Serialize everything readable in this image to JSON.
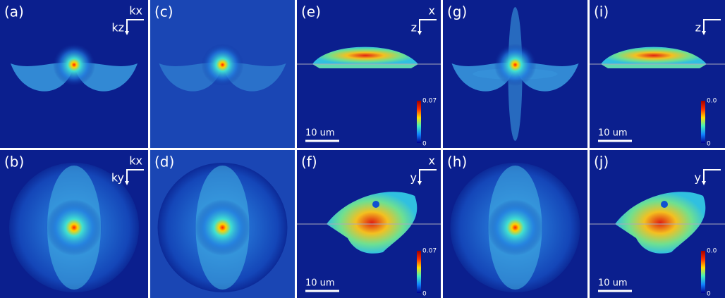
{
  "panels": [
    {
      "label": "(a)",
      "axis_h": "kx",
      "axis_v": "kz"
    },
    {
      "label": "(b)",
      "axis_h": "kx",
      "axis_v": "ky"
    },
    {
      "label": "(c)"
    },
    {
      "label": "(d)"
    },
    {
      "label": "(e)",
      "axis_h": "x",
      "axis_v": "z",
      "scale_bar": "10 um",
      "colorbar_max": "0.07",
      "colorbar_min": "0"
    },
    {
      "label": "(f)",
      "axis_h": "x",
      "axis_v": "y",
      "scale_bar": "10 um",
      "colorbar_max": "0.07",
      "colorbar_min": "0"
    },
    {
      "label": "(g)"
    },
    {
      "label": "(h)"
    },
    {
      "label": "(i)",
      "axis_v": "z",
      "scale_bar": "10 um",
      "colorbar_max": "0.0",
      "colorbar_min": "0"
    },
    {
      "label": "(j)",
      "axis_v": "y",
      "scale_bar": "10 um",
      "colorbar_max": "0.0",
      "colorbar_min": "0"
    }
  ]
}
